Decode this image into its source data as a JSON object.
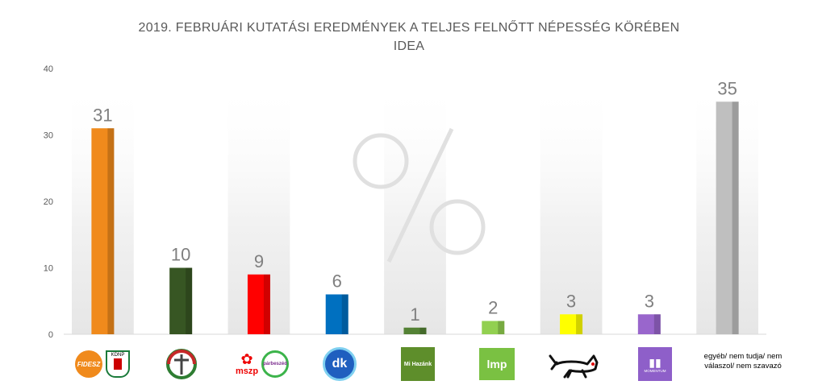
{
  "title": "2019. FEBRUÁRI KUTATÁSI EREDMÉNYEK A TELJES FELNŐTT NÉPESSÉG KÖRÉBEN",
  "subtitle": "IDEA",
  "chart_data": {
    "type": "bar",
    "title": "2019. FEBRUÁRI KUTATÁSI EREDMÉNYEK A TELJES FELNŐTT NÉPESSÉG KÖRÉBEN",
    "subtitle": "IDEA",
    "ylim": [
      0,
      40
    ],
    "yticks": [
      0,
      10,
      20,
      30,
      40
    ],
    "grid": false,
    "categories": [
      "FIDESZ-KDNP",
      "Jobbik",
      "MSZP-Párbeszéd",
      "DK",
      "Mi Hazánk",
      "LMP",
      "MKKP",
      "Momentum",
      "egyéb/ nem tudja/ nem válaszol/ nem szavazó"
    ],
    "values": [
      31,
      10,
      9,
      6,
      1,
      2,
      3,
      3,
      35
    ],
    "colors": [
      "#F08A1C",
      "#375623",
      "#FF0000",
      "#0070C0",
      "#548235",
      "#92D050",
      "#FFFF00",
      "#9966CC",
      "#BFBFBF"
    ]
  },
  "logos": {
    "fidesz": "FIDESZ",
    "kdnp": "KDNP",
    "mszp": "mszp",
    "parbeszed": "párbeszéd",
    "dk": "dk",
    "mihazank": "Mi Hazánk",
    "lmp": "lmp",
    "momentum": "MOMENTUM",
    "other": "egyéb/ nem tudja/ nem válaszol/ nem szavazó"
  }
}
